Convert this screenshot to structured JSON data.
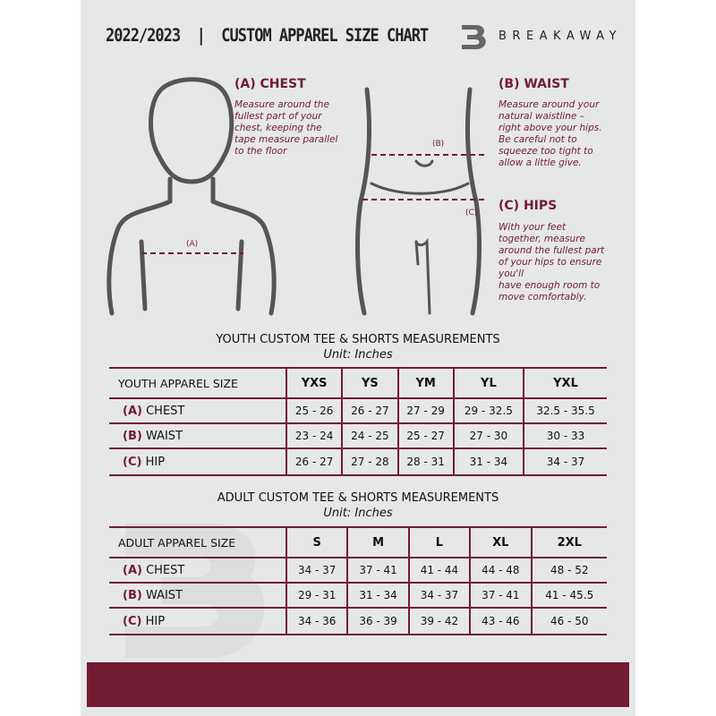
{
  "header": {
    "title": "2022/2023  |  CUSTOM APPAREL SIZE CHART",
    "brand": "BREAKAWAY",
    "logo_letter": "B"
  },
  "guides": {
    "chest": {
      "heading": "(A) CHEST",
      "text": "Measure around the\nfullest part of your\nchest, keeping the\ntape measure parallel\nto the floor",
      "marker": "(A)"
    },
    "waist": {
      "heading": "(B) WAIST",
      "text": "Measure around your\nnatural waistline –\nright above your hips.\nBe careful not to\nsqueeze too tight to\nallow a little give.",
      "marker": "(B)"
    },
    "hips": {
      "heading": "(C) HIPS",
      "text": "With your feet\ntogether, measure\naround the fullest part\nof your hips to ensure\nyou'll\nhave enough room to\nmove comfortably.",
      "marker": "(C)"
    }
  },
  "colors": {
    "accent": "#721c33",
    "background": "#e6e7e8"
  },
  "youth": {
    "title": "YOUTH CUSTOM TEE & SHORTS MEASUREMENTS",
    "unit": "Unit: Inches",
    "header": [
      "YOUTH APPAREL SIZE",
      "YXS",
      "YS",
      "YM",
      "YL",
      "YXL"
    ],
    "rows": [
      {
        "tag": "(A)",
        "label": "CHEST",
        "values": [
          "25 - 26",
          "26 - 27",
          "27 - 29",
          "29 - 32.5",
          "32.5 - 35.5"
        ]
      },
      {
        "tag": "(B)",
        "label": "WAIST",
        "values": [
          "23 - 24",
          "24 - 25",
          "25 - 27",
          "27 - 30",
          "30 - 33"
        ]
      },
      {
        "tag": "(C)",
        "label": "HIP",
        "values": [
          "26 - 27",
          "27 - 28",
          "28 - 31",
          "31 - 34",
          "34 - 37"
        ]
      }
    ]
  },
  "adult": {
    "title": "ADULT CUSTOM TEE & SHORTS MEASUREMENTS",
    "unit": "Unit: Inches",
    "header": [
      "ADULT APPAREL SIZE",
      "S",
      "M",
      "L",
      "XL",
      "2XL"
    ],
    "rows": [
      {
        "tag": "(A)",
        "label": "CHEST",
        "values": [
          "34 - 37",
          "37 - 41",
          "41 - 44",
          "44 - 48",
          "48 - 52"
        ]
      },
      {
        "tag": "(B)",
        "label": "WAIST",
        "values": [
          "29 - 31",
          "31 - 34",
          "34 - 37",
          "37 - 41",
          "41 - 45.5"
        ]
      },
      {
        "tag": "(C)",
        "label": "HIP",
        "values": [
          "34 - 36",
          "36 - 39",
          "39 - 42",
          "43 - 46",
          "46 - 50"
        ]
      }
    ]
  }
}
